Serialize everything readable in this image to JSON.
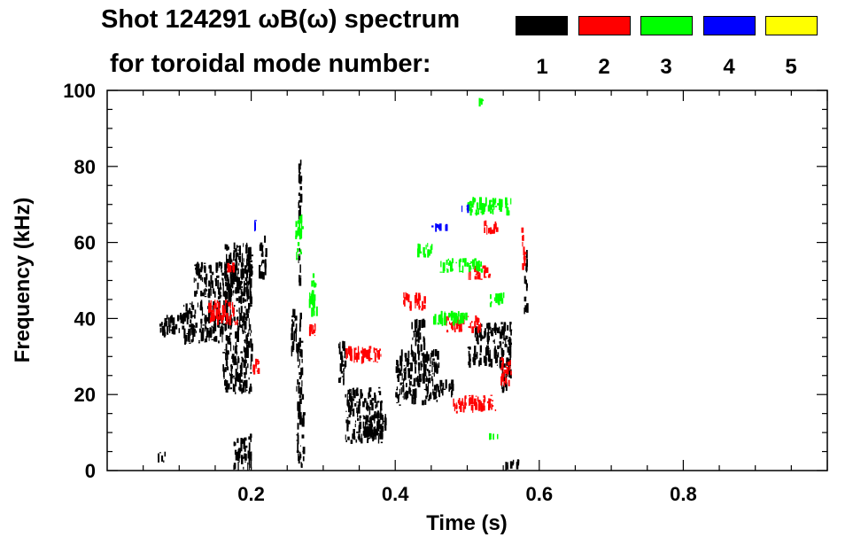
{
  "header": {
    "title_line1": "Shot 124291 ωB(ω) spectrum",
    "title_line2": "for toroidal mode number:"
  },
  "legend": [
    {
      "label": "1",
      "color": "#000000"
    },
    {
      "label": "2",
      "color": "#ff0000"
    },
    {
      "label": "3",
      "color": "#00ff00"
    },
    {
      "label": "4",
      "color": "#0000ff"
    },
    {
      "label": "5",
      "color": "#ffff00"
    }
  ],
  "chart_data": {
    "type": "heatmap",
    "title": "Shot 124291 ωB(ω) spectrum",
    "xlabel": "Time (s)",
    "ylabel": "Frequency (kHz)",
    "xlim": [
      0.0,
      1.0
    ],
    "ylim": [
      0,
      100
    ],
    "xticks": [
      0.2,
      0.4,
      0.6,
      0.8
    ],
    "xtick_labels": [
      "0.2",
      "0.4",
      "0.6",
      "0.8"
    ],
    "yticks": [
      0,
      20,
      40,
      60,
      80,
      100
    ],
    "ytick_labels": [
      "0",
      "20",
      "40",
      "60",
      "80",
      "100"
    ],
    "grid": false,
    "series": [
      {
        "name": "1",
        "color": "#000000",
        "segments": [
          [
            0.07,
            0.1,
            35,
            41
          ],
          [
            0.1,
            0.16,
            33,
            45
          ],
          [
            0.12,
            0.2,
            45,
            55
          ],
          [
            0.16,
            0.2,
            20,
            60
          ],
          [
            0.21,
            0.22,
            50,
            62
          ],
          [
            0.175,
            0.2,
            0,
            10
          ],
          [
            0.262,
            0.272,
            0,
            35
          ],
          [
            0.265,
            0.268,
            35,
            87
          ],
          [
            0.255,
            0.262,
            30,
            45
          ],
          [
            0.32,
            0.33,
            22,
            35
          ],
          [
            0.33,
            0.38,
            7,
            22
          ],
          [
            0.36,
            0.39,
            8,
            15
          ],
          [
            0.4,
            0.46,
            17,
            32
          ],
          [
            0.42,
            0.44,
            30,
            40
          ],
          [
            0.46,
            0.48,
            19,
            24
          ],
          [
            0.5,
            0.55,
            27,
            33
          ],
          [
            0.51,
            0.56,
            33,
            39
          ],
          [
            0.545,
            0.56,
            20,
            40
          ],
          [
            0.578,
            0.582,
            40,
            62
          ],
          [
            0.55,
            0.57,
            0,
            3
          ],
          [
            0.07,
            0.08,
            2,
            5
          ]
        ]
      },
      {
        "name": "2",
        "color": "#ff0000",
        "segments": [
          [
            0.14,
            0.18,
            38,
            45
          ],
          [
            0.165,
            0.175,
            52,
            55
          ],
          [
            0.28,
            0.29,
            35,
            40
          ],
          [
            0.33,
            0.38,
            28,
            33
          ],
          [
            0.41,
            0.44,
            42,
            47
          ],
          [
            0.47,
            0.52,
            36,
            41
          ],
          [
            0.48,
            0.54,
            15,
            20
          ],
          [
            0.5,
            0.53,
            50,
            54
          ],
          [
            0.52,
            0.54,
            62,
            66
          ],
          [
            0.545,
            0.56,
            22,
            30
          ],
          [
            0.575,
            0.58,
            52,
            64
          ],
          [
            0.2,
            0.21,
            25,
            30
          ]
        ]
      },
      {
        "name": "3",
        "color": "#00ff00",
        "segments": [
          [
            0.26,
            0.27,
            55,
            68
          ],
          [
            0.28,
            0.29,
            40,
            52
          ],
          [
            0.43,
            0.45,
            56,
            60
          ],
          [
            0.45,
            0.5,
            38,
            42
          ],
          [
            0.46,
            0.52,
            52,
            56
          ],
          [
            0.5,
            0.56,
            67,
            72
          ],
          [
            0.51,
            0.52,
            96,
            98
          ],
          [
            0.53,
            0.55,
            43,
            47
          ],
          [
            0.53,
            0.545,
            8,
            10
          ]
        ]
      },
      {
        "name": "4",
        "color": "#0000ff",
        "segments": [
          [
            0.2,
            0.205,
            62,
            66
          ],
          [
            0.45,
            0.47,
            63,
            65
          ],
          [
            0.49,
            0.5,
            68,
            70
          ]
        ]
      },
      {
        "name": "5",
        "color": "#ffff00",
        "segments": []
      }
    ]
  }
}
